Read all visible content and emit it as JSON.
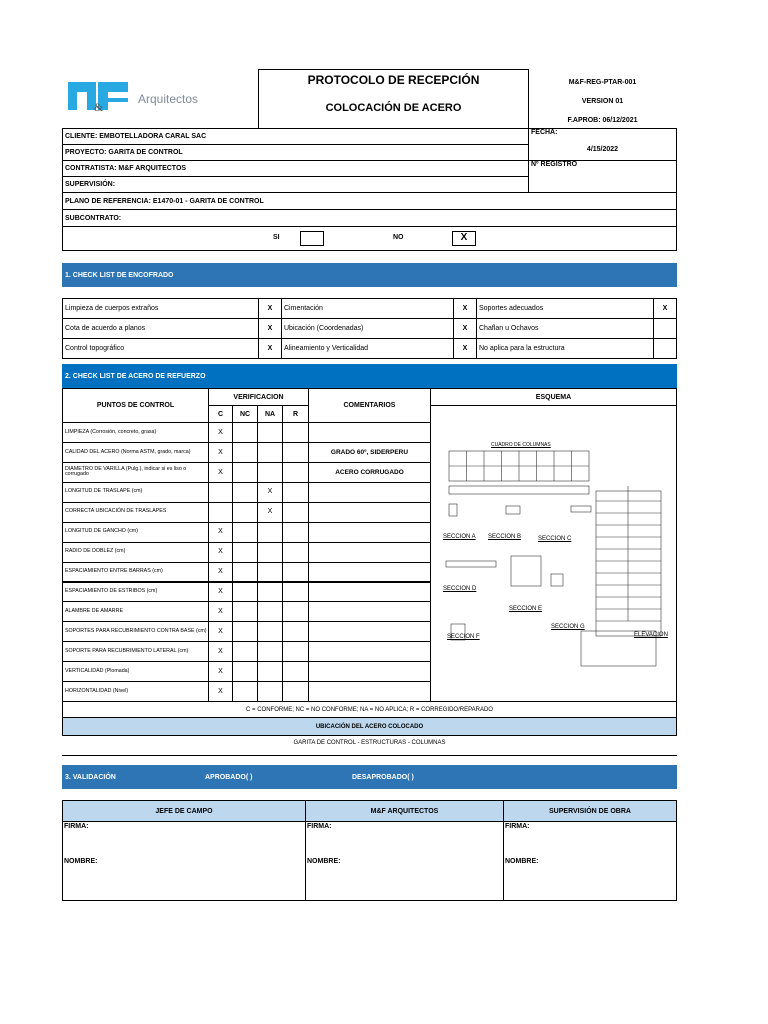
{
  "header": {
    "logo_text": "Arquitectos",
    "logo_mark": "M&F",
    "title": "PROTOCOLO DE RECEPCIÓN",
    "subtitle": "COLOCACIÓN DE ACERO",
    "code": "M&F-REG-PTAR-001",
    "version": "VERSION 01",
    "approval": "F.APROB: 06/12/2021"
  },
  "info": {
    "cliente": "CLIENTE: EMBOTELLADORA CARAL SAC",
    "proyecto": "PROYECTO: GARITA DE CONTROL",
    "contratista": "CONTRATISTA: M&F ARQUITECTOS",
    "supervision": "SUPERVISIÓN:",
    "plano": "PLANO DE REFERENCIA: E1470-01 - GARITA DE CONTROL",
    "subcontrato": "SUBCONTRATO:",
    "fecha_label": "FECHA:",
    "fecha": "4/15/2022",
    "registro_label": "Nº REGISTRO",
    "si_label": "SI",
    "si_value": "",
    "no_label": "NO",
    "no_value": "X"
  },
  "section1": {
    "title": "1. CHECK LIST DE ENCOFRADO",
    "rows": [
      [
        {
          "label": "Limpieza de cuerpos extraños",
          "mark": "X"
        },
        {
          "label": "Cimentación",
          "mark": "X"
        },
        {
          "label": "Soportes adecuados",
          "mark": "X"
        }
      ],
      [
        {
          "label": "Cota de acuerdo a planos",
          "mark": "X"
        },
        {
          "label": "Ubicación (Coordenadas)",
          "mark": "X"
        },
        {
          "label": "Chaflan u Ochavos",
          "mark": ""
        }
      ],
      [
        {
          "label": "Control topográfico",
          "mark": "X"
        },
        {
          "label": "Alineamiento y Verticalidad",
          "mark": "X"
        },
        {
          "label": "No aplica para la estructura",
          "mark": ""
        }
      ]
    ]
  },
  "section2": {
    "title": "2. CHECK LIST DE ACERO DE REFUERZO",
    "col_points": "PUNTOS DE CONTROL",
    "col_verif": "VERIFICACION",
    "col_c": "C",
    "col_nc": "NC",
    "col_na": "NA",
    "col_r": "R",
    "col_comments": "COMENTARIOS",
    "col_schema": "ESQUEMA",
    "rows": [
      {
        "label": "LIMPIEZA (Corrosión, concreto, grasa)",
        "c": "X",
        "nc": "",
        "na": "",
        "r": "",
        "comment": ""
      },
      {
        "label": "CALIDAD DEL ACERO (Norma ASTM, grado, marca)",
        "c": "X",
        "nc": "",
        "na": "",
        "r": "",
        "comment": "GRADO 60º, SIDERPERU"
      },
      {
        "label": "DIAMETRO DE VARILLA (Pulg.), indicar si es liso o corrugado",
        "c": "X",
        "nc": "",
        "na": "",
        "r": "",
        "comment": "ACERO CORRUGADO"
      },
      {
        "label": "LONGITUD DE TRASLAPE (cm)",
        "c": "",
        "nc": "",
        "na": "X",
        "r": "",
        "comment": ""
      },
      {
        "label": "CORRECTA UBICACIÓN DE TRASLAPES",
        "c": "",
        "nc": "",
        "na": "X",
        "r": "",
        "comment": ""
      },
      {
        "label": "LONGITUD DE GANCHO (cm)",
        "c": "X",
        "nc": "",
        "na": "",
        "r": "",
        "comment": ""
      },
      {
        "label": "RADIO DE DOBLEZ (cm)",
        "c": "X",
        "nc": "",
        "na": "",
        "r": "",
        "comment": ""
      },
      {
        "label": "ESPACIAMIENTO ENTRE BARRAS (cm)",
        "c": "X",
        "nc": "",
        "na": "",
        "r": "",
        "comment": ""
      },
      {
        "label": "ESPACIAMIENTO DE ESTRIBOS (cm)",
        "c": "X",
        "nc": "",
        "na": "",
        "r": "",
        "comment": ""
      },
      {
        "label": "ALAMBRE DE AMARRE",
        "c": "X",
        "nc": "",
        "na": "",
        "r": "",
        "comment": ""
      },
      {
        "label": "SOPORTES PARA RECUBRIMIENTO CONTRA BASE (cm)",
        "c": "X",
        "nc": "",
        "na": "",
        "r": "",
        "comment": ""
      },
      {
        "label": "SOPORTE PARA RECUBRIMIENTO LATERAL (cm)",
        "c": "X",
        "nc": "",
        "na": "",
        "r": "",
        "comment": ""
      },
      {
        "label": "VERTICALIDAD (Plomada)",
        "c": "X",
        "nc": "",
        "na": "",
        "r": "",
        "comment": ""
      },
      {
        "label": "HORIZONTALIDAD (Nivel)",
        "c": "X",
        "nc": "",
        "na": "",
        "r": "",
        "comment": ""
      }
    ],
    "schema": {
      "table_title": "CUADRO DE COLUMNAS",
      "sections": [
        "SECCION A",
        "SECCION B",
        "SECCION C",
        "SECCION D",
        "SECCION E",
        "SECCION F",
        "SECCION G"
      ],
      "elevation": "ELEVACION"
    },
    "legend": "C = CONFORME;  NC = NO CONFORME;  NA = NO APLICA;  R = CORREGIDO/REPARADO",
    "location_title": "UBICACIÓN DEL ACERO COLOCADO",
    "location": "GARITA DE CONTROL - ESTRUCTURAS - COLUMNAS"
  },
  "section3": {
    "title": "3. VALIDACIÓN",
    "approved": "APROBADO(   )",
    "rejected": "DESAPROBADO(   )",
    "signers": [
      {
        "title": "JEFE DE CAMPO",
        "firma": "FIRMA:",
        "nombre": "NOMBRE:"
      },
      {
        "title": "M&F ARQUITECTOS",
        "firma": "FIRMA:",
        "nombre": "NOMBRE:"
      },
      {
        "title": "SUPERVISIÓN DE OBRA",
        "firma": "FIRMA:",
        "nombre": "NOMBRE:"
      }
    ]
  },
  "colors": {
    "bar": "#2e75b6",
    "light": "#bdd7ee",
    "logo": "#29a9e1"
  }
}
